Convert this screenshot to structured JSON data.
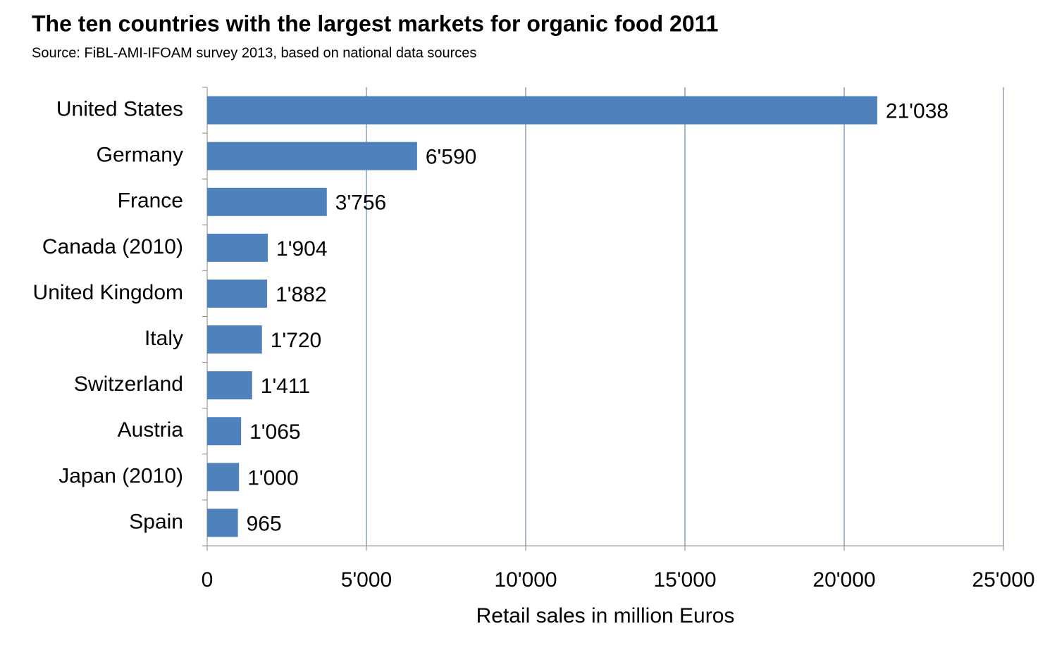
{
  "chart_data": {
    "type": "bar",
    "orientation": "horizontal",
    "title": "The ten countries with the largest markets for organic food  2011",
    "subtitle": "Source: FiBL-AMI-IFOAM survey 2013, based on national data sources",
    "x_label": "Retail sales in million Euros",
    "categories": [
      "United States",
      "Germany",
      "France",
      "Canada (2010)",
      "United Kingdom",
      "Italy",
      "Switzerland",
      "Austria",
      "Japan (2010)",
      "Spain"
    ],
    "values": [
      21038,
      6590,
      3756,
      1904,
      1882,
      1720,
      1411,
      1065,
      1000,
      965
    ],
    "value_labels": [
      "21'038",
      "6'590",
      "3'756",
      "1'904",
      "1'882",
      "1'720",
      "1'411",
      "1'065",
      "1'000",
      "965"
    ],
    "color": "#4f81bd",
    "xlim": [
      0,
      25000
    ],
    "xticks": [
      0,
      {
        "value": 5000,
        "label": "5'000"
      },
      {
        "value": 10000,
        "label": "10'000"
      },
      {
        "value": 15000,
        "label": "15'000"
      },
      {
        "value": 20000,
        "label": "20'000"
      },
      {
        "value": 25000,
        "label": "25'000"
      }
    ],
    "grid": true
  }
}
